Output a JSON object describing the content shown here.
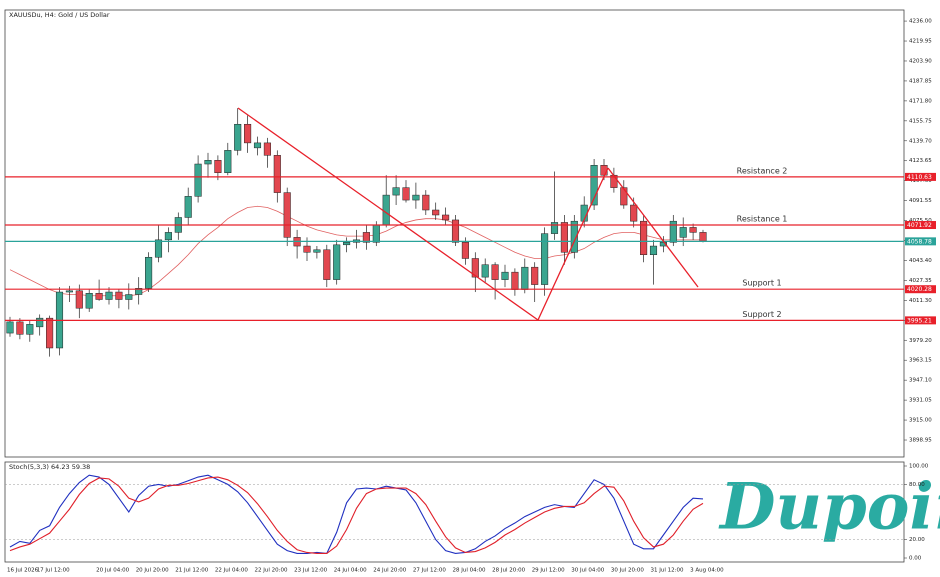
{
  "watermark": "Dupoin",
  "chart_data": [
    {
      "type": "candlestick",
      "title": "XAUUSDu, H4: Gold / US Dollar",
      "categories": [
        "16 Jul 2026",
        null,
        null,
        "17 Jul 12:00",
        null,
        null,
        null,
        null,
        null,
        "20 Jul 04:00",
        null,
        null,
        null,
        "20 Jul 20:00",
        null,
        null,
        null,
        "21 Jul 12:00",
        null,
        null,
        null,
        "22 Jul 04:00",
        null,
        null,
        null,
        "22 Jul 20:00",
        null,
        null,
        null,
        "23 Jul 12:00",
        null,
        null,
        null,
        "24 Jul 04:00",
        null,
        null,
        null,
        "24 Jul 20:00",
        null,
        null,
        null,
        "27 Jul 12:00",
        null,
        null,
        null,
        "28 Jul 04:00",
        null,
        null,
        null,
        "28 Jul 20:00",
        null,
        null,
        null,
        "29 Jul 12:00",
        null,
        null,
        null,
        "30 Jul 04:00",
        null,
        null,
        null,
        "30 Jul 20:00",
        null,
        null,
        null,
        "31 Jul 12:00",
        null,
        null,
        null,
        "3 Aug 04:00",
        null
      ],
      "open": [
        3985,
        3994,
        3984,
        3990,
        3997,
        3973,
        4018,
        4019,
        4005,
        4017,
        4012,
        4018,
        4012,
        4016,
        4021,
        4046,
        4060,
        4066,
        4078,
        4095,
        4121,
        4124,
        4114,
        4132,
        4153,
        4134,
        4138,
        4128,
        4098,
        4062,
        4055,
        4050,
        4052,
        4028,
        4056,
        4058,
        4066,
        4058,
        4072,
        4096,
        4102,
        4092,
        4096,
        4084,
        4080,
        4076,
        4058,
        4045,
        4030,
        4040,
        4028,
        4034,
        4020,
        4038,
        4024,
        4065,
        4074,
        4050,
        4075,
        4088,
        4120,
        4112,
        4102,
        4088,
        4075,
        4048,
        4055,
        4058,
        4062,
        4070,
        4066
      ],
      "high": [
        3998,
        3997,
        3995,
        4000,
        3999,
        4022,
        4023,
        4024,
        4020,
        4028,
        4022,
        4020,
        4025,
        4030,
        4050,
        4072,
        4070,
        4082,
        4102,
        4128,
        4130,
        4128,
        4138,
        4166,
        4160,
        4143,
        4142,
        4132,
        4102,
        4068,
        4062,
        4055,
        4056,
        4060,
        4062,
        4068,
        4072,
        4075,
        4112,
        4112,
        4108,
        4106,
        4100,
        4090,
        4086,
        4080,
        4062,
        4050,
        4045,
        4042,
        4040,
        4037,
        4045,
        4042,
        4070,
        4115,
        4080,
        4080,
        4095,
        4125,
        4125,
        4118,
        4108,
        4094,
        4080,
        4060,
        4063,
        4080,
        4078,
        4073,
        4068
      ],
      "low": [
        3982,
        3980,
        3978,
        3983,
        3966,
        3967,
        4010,
        3997,
        4002,
        4011,
        4008,
        4005,
        4004,
        4008,
        4018,
        4042,
        4050,
        4060,
        4072,
        4090,
        4110,
        4108,
        4112,
        4128,
        4130,
        4128,
        4118,
        4090,
        4055,
        4045,
        4043,
        4045,
        4022,
        4024,
        4050,
        4053,
        4052,
        4055,
        4070,
        4088,
        4090,
        4085,
        4080,
        4076,
        4072,
        4055,
        4040,
        4018,
        4025,
        4012,
        4022,
        4015,
        4017,
        4010,
        4015,
        4060,
        4040,
        4045,
        4070,
        4084,
        4108,
        4098,
        4085,
        4070,
        4042,
        4024,
        4050,
        4055,
        4055,
        4060,
        4058
      ],
      "close": [
        3994,
        3984,
        3992,
        3997,
        3973,
        4018,
        4019,
        4005,
        4017,
        4012,
        4018,
        4012,
        4016,
        4021,
        4046,
        4060,
        4066,
        4078,
        4095,
        4121,
        4124,
        4114,
        4132,
        4153,
        4138,
        4138,
        4128,
        4098,
        4062,
        4055,
        4050,
        4052,
        4028,
        4056,
        4058,
        4060,
        4058,
        4072,
        4096,
        4102,
        4092,
        4096,
        4084,
        4080,
        4076,
        4058,
        4045,
        4030,
        4040,
        4028,
        4034,
        4020,
        4038,
        4024,
        4065,
        4074,
        4050,
        4075,
        4088,
        4120,
        4112,
        4102,
        4088,
        4075,
        4048,
        4055,
        4058,
        4075,
        4070,
        4066,
        4059
      ],
      "up_color": "#3aa58f",
      "down_color": "#e2474f",
      "series": [
        {
          "color": "#e06060",
          "values": [
            4036,
            4032,
            4028,
            4024,
            4020,
            4017,
            4016,
            4016,
            4015,
            4015,
            4015,
            4015,
            4015,
            4016,
            4020,
            4026,
            4033,
            4040,
            4048,
            4057,
            4064,
            4070,
            4077,
            4082,
            4086,
            4087,
            4086,
            4083,
            4079,
            4075,
            4071,
            4068,
            4066,
            4064,
            4063,
            4063,
            4063,
            4064,
            4067,
            4071,
            4074,
            4076,
            4077,
            4077,
            4076,
            4073,
            4070,
            4066,
            4062,
            4058,
            4054,
            4050,
            4047,
            4045,
            4045,
            4047,
            4048,
            4050,
            4053,
            4058,
            4062,
            4065,
            4066,
            4066,
            4064,
            4062,
            4060,
            4060,
            4060,
            4060,
            4060
          ]
        }
      ],
      "levels": [
        {
          "name": "Resistance 2",
          "value": 4110.63,
          "color": "#e8202a"
        },
        {
          "name": "Resistance 1",
          "value": 4071.92,
          "color": "#e8202a"
        },
        {
          "name": "Support 1",
          "value": 4020.28,
          "color": "#e8202a"
        },
        {
          "name": "Support 2",
          "value": 3995.21,
          "color": "#e8202a"
        }
      ],
      "last_price": {
        "value": 4058.78,
        "color": "#2aa39a"
      },
      "ylim": [
        3886.9,
        4243.3
      ],
      "yticks": [
        {
          "value": 4236,
          "label": "4236.00"
        },
        4219.95,
        {
          "value": 4203.9,
          "label": "4203.90"
        },
        4187.85,
        {
          "value": 4171.8,
          "label": "4171.80"
        },
        4155.75,
        {
          "value": 4139.7,
          "label": "4139.70"
        },
        4123.65,
        {
          "value": 4107.6,
          "label": "4107.60"
        },
        4091.55,
        {
          "value": 4075.5,
          "label": "4075.50"
        },
        4059.45,
        {
          "value": 4043.4,
          "label": "4043.40"
        },
        4027.35,
        {
          "value": 4011.3,
          "label": "4011.30"
        },
        3995.25,
        {
          "value": 3979.2,
          "label": "3979.20"
        },
        3963.15,
        {
          "value": 3947.1,
          "label": "3947.10"
        },
        3931.05,
        {
          "value": 3915,
          "label": "3915.00"
        },
        3898.95
      ]
    },
    {
      "type": "line",
      "title": "Stoch(5,3,3) 64.23 59.38",
      "series": [
        {
          "color": "#2030c0",
          "values": [
            12,
            18,
            16,
            30,
            35,
            55,
            70,
            82,
            90,
            88,
            80,
            65,
            50,
            68,
            78,
            80,
            78,
            80,
            84,
            88,
            90,
            85,
            80,
            72,
            60,
            45,
            30,
            15,
            8,
            5,
            5,
            6,
            5,
            28,
            60,
            75,
            76,
            75,
            78,
            76,
            74,
            60,
            40,
            20,
            8,
            5,
            6,
            10,
            18,
            24,
            32,
            38,
            45,
            50,
            55,
            58,
            56,
            55,
            70,
            85,
            80,
            65,
            40,
            15,
            10,
            10,
            25,
            40,
            55,
            65,
            64.23
          ]
        },
        {
          "color": "#e0202a",
          "values": [
            8,
            12,
            15,
            21,
            27,
            40,
            53,
            69,
            81,
            87,
            86,
            78,
            65,
            61,
            65,
            75,
            79,
            79,
            81,
            84,
            87,
            88,
            85,
            79,
            71,
            59,
            45,
            30,
            18,
            9,
            6,
            5,
            5,
            13,
            31,
            54,
            70,
            75,
            76,
            76,
            76,
            70,
            58,
            40,
            23,
            11,
            6,
            7,
            11,
            17,
            25,
            31,
            38,
            44,
            50,
            54,
            56,
            56,
            60,
            70,
            78,
            77,
            62,
            40,
            22,
            12,
            15,
            25,
            40,
            53,
            59.38
          ]
        }
      ],
      "ylim": [
        0,
        100
      ],
      "yticks": [
        {
          "value": 100,
          "label": "100.00"
        },
        {
          "value": 80,
          "label": "80.00"
        },
        {
          "value": 20,
          "label": "20.00"
        },
        {
          "value": 0,
          "label": "0.00"
        }
      ]
    }
  ]
}
